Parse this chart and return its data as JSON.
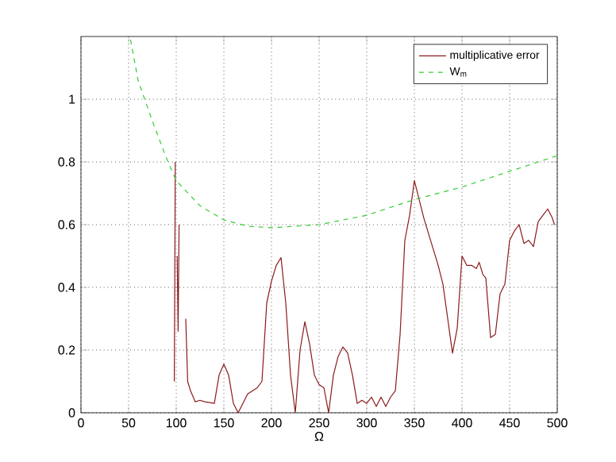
{
  "chart_data": {
    "type": "line",
    "xlabel": "Ω",
    "xlim": [
      0,
      500
    ],
    "ylim": [
      0,
      1.2
    ],
    "xticks": [
      0,
      50,
      100,
      150,
      200,
      250,
      300,
      350,
      400,
      450,
      500
    ],
    "yticks": [
      0,
      0.2,
      0.4,
      0.6,
      0.8,
      1
    ],
    "grid": true,
    "legend": "top right",
    "series": [
      {
        "name": "multiplicative error",
        "color": "#8b1a1a",
        "line_style": "solid",
        "x": [
          98,
          99,
          100,
          101,
          102,
          103,
          105,
          107,
          109,
          110,
          112,
          115,
          120,
          125,
          130,
          140,
          145,
          150,
          155,
          160,
          165,
          170,
          175,
          185,
          190,
          195,
          200,
          205,
          210,
          215,
          220,
          225,
          230,
          235,
          240,
          245,
          250,
          255,
          260,
          265,
          270,
          275,
          280,
          285,
          290,
          295,
          300,
          305,
          310,
          315,
          320,
          325,
          330,
          335,
          340,
          345,
          350,
          355,
          360,
          365,
          370,
          375,
          380,
          385,
          390,
          395,
          400,
          405,
          410,
          415,
          418,
          422,
          425,
          430,
          435,
          440,
          445,
          450,
          455,
          460,
          465,
          470,
          475,
          480,
          485,
          490,
          495,
          497
        ],
        "values": [
          0.1,
          0.8,
          null,
          0.5,
          0.26,
          0.6,
          null,
          null,
          null,
          0.3,
          0.1,
          0.07,
          0.035,
          0.04,
          0.035,
          0.03,
          0.12,
          0.155,
          0.12,
          0.03,
          0.0,
          0.03,
          0.06,
          0.08,
          0.1,
          0.35,
          0.42,
          0.47,
          0.495,
          0.35,
          0.12,
          0.0,
          0.2,
          0.29,
          0.22,
          0.12,
          0.09,
          0.08,
          0.0,
          0.12,
          0.18,
          0.21,
          0.19,
          0.12,
          0.03,
          0.04,
          0.03,
          0.05,
          0.02,
          0.05,
          0.02,
          0.05,
          0.07,
          0.25,
          0.55,
          0.63,
          0.74,
          0.68,
          0.62,
          0.57,
          0.52,
          0.47,
          0.41,
          0.3,
          0.19,
          0.27,
          0.5,
          0.47,
          0.47,
          0.46,
          0.48,
          0.44,
          0.43,
          0.24,
          0.25,
          0.38,
          0.41,
          0.55,
          0.58,
          0.6,
          0.54,
          0.55,
          0.53,
          0.61,
          0.63,
          0.65,
          0.62,
          0.6
        ]
      },
      {
        "name": "W$_{m}$",
        "color": "#33cc33",
        "line_style": "dashed",
        "x": [
          52,
          60,
          75,
          90,
          100,
          125,
          150,
          175,
          200,
          250,
          300,
          350,
          400,
          450,
          500
        ],
        "values": [
          1.19,
          1.06,
          0.93,
          0.81,
          0.74,
          0.66,
          0.615,
          0.595,
          0.59,
          0.6,
          0.63,
          0.68,
          0.72,
          0.77,
          0.82
        ]
      }
    ]
  }
}
